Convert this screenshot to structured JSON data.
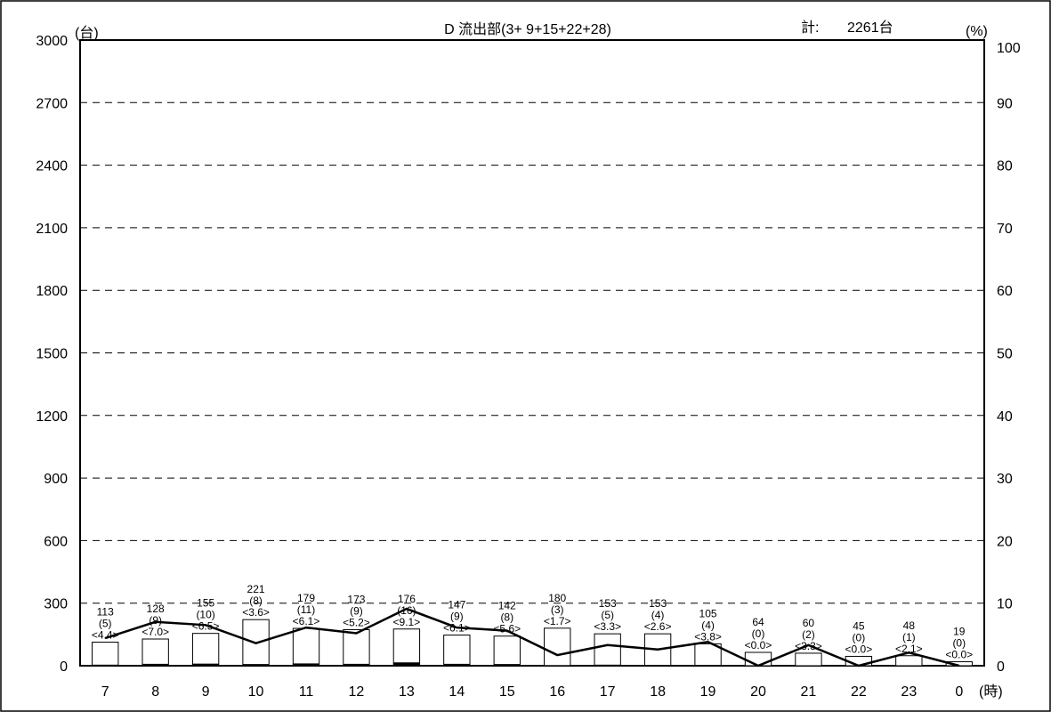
{
  "header": {
    "left_unit": "(台)",
    "title": "D 流出部(3+ 9+15+22+28)",
    "total_label": "計:",
    "total_value": "2261台",
    "right_unit": "(%)",
    "x_unit": "(時)"
  },
  "chart_data": {
    "type": "bar",
    "title": "D 流出部(3+ 9+15+22+28)",
    "categories": [
      "7",
      "8",
      "9",
      "10",
      "11",
      "12",
      "13",
      "14",
      "15",
      "16",
      "17",
      "18",
      "19",
      "20",
      "21",
      "22",
      "23",
      "0"
    ],
    "y_left": {
      "min": 0,
      "max": 3000,
      "ticks": [
        0,
        300,
        600,
        900,
        1200,
        1500,
        1800,
        2100,
        2400,
        2700,
        3000
      ]
    },
    "y_right": {
      "min": 0,
      "max": 100,
      "ticks": [
        0,
        10,
        20,
        30,
        40,
        50,
        60,
        70,
        80,
        90,
        100
      ]
    },
    "grid": "dashed horizontal",
    "series": [
      {
        "name": "台",
        "type": "bar",
        "values": [
          113,
          128,
          155,
          221,
          179,
          173,
          176,
          147,
          142,
          180,
          153,
          153,
          105,
          64,
          60,
          45,
          48,
          19
        ]
      },
      {
        "name": "()",
        "type": "bar",
        "values": [
          5,
          9,
          10,
          8,
          11,
          9,
          16,
          9,
          8,
          3,
          5,
          4,
          4,
          0,
          2,
          0,
          1,
          0
        ]
      },
      {
        "name": "<>",
        "type": "line",
        "axis": "right",
        "values": [
          4.4,
          7.0,
          6.5,
          3.6,
          6.1,
          5.2,
          9.1,
          6.1,
          5.6,
          1.7,
          3.3,
          2.6,
          3.8,
          0.0,
          3.3,
          0.0,
          2.1,
          0.0
        ]
      }
    ],
    "labels": {
      "total": [
        "113",
        "128",
        "155",
        "221",
        "179",
        "173",
        "176",
        "147",
        "142",
        "180",
        "153",
        "153",
        "105",
        "64",
        "60",
        "45",
        "48",
        "19"
      ],
      "heavy": [
        "(5)",
        "(9)",
        "(10)",
        "(8)",
        "(11)",
        "(9)",
        "(16)",
        "(9)",
        "(8)",
        "(3)",
        "(5)",
        "(4)",
        "(4)",
        "(0)",
        "(2)",
        "(0)",
        "(1)",
        "(0)"
      ],
      "ratio": [
        "<4.4>",
        "<7.0>",
        "<6.5>",
        "<3.6>",
        "<6.1>",
        "<5.2>",
        "<9.1>",
        "<6.1>",
        "<5.6>",
        "<1.7>",
        "<3.3>",
        "<2.6>",
        "<3.8>",
        "<0.0>",
        "<3.3>",
        "<0.0>",
        "<2.1>",
        "<0.0>"
      ]
    }
  }
}
